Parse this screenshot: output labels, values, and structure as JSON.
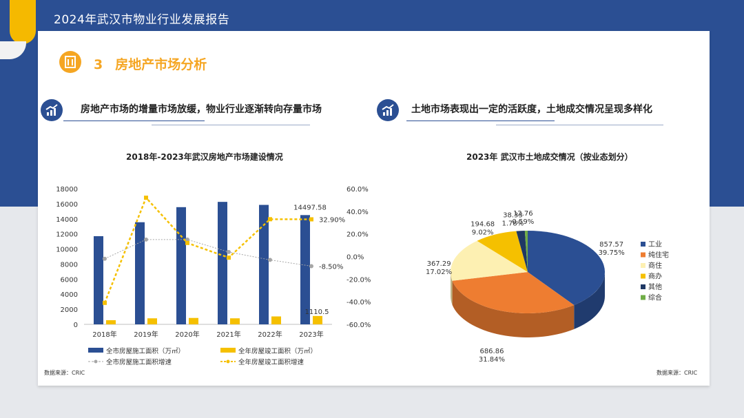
{
  "header": {
    "title": "2024年武汉市物业行业发展报告"
  },
  "section": {
    "number": "3",
    "title": "房地产市场分析"
  },
  "left": {
    "subtitle": "房地产市场的增量市场放缓，物业行业逐渐转向存量市场",
    "source": "数据来源：CRIC"
  },
  "right": {
    "subtitle": "土地市场表现出一定的活跃度，土地成交情况呈现多样化",
    "source": "数据来源：CRIC"
  },
  "chart_data": [
    {
      "type": "bar",
      "title": "2018年-2023年武汉房地产市场建设情况",
      "categories": [
        "2018年",
        "2019年",
        "2020年",
        "2021年",
        "2022年",
        "2023年"
      ],
      "ylim": [
        0,
        18000
      ],
      "y2lim": [
        -60,
        60
      ],
      "y_ticks": [
        "0",
        "2000",
        "4000",
        "6000",
        "8000",
        "10000",
        "12000",
        "14000",
        "16000",
        "18000"
      ],
      "y2_ticks": [
        "-60.0%",
        "-40.0%",
        "-20.0%",
        "0.0%",
        "20.0%",
        "40.0%",
        "60.0%"
      ],
      "series": [
        {
          "name": "全市房屋施工面积（万㎡）",
          "kind": "bar",
          "axis": "left",
          "color": "#2b4f93",
          "values": [
            11700,
            13550,
            15550,
            16250,
            15850,
            14497.58
          ]
        },
        {
          "name": "全年房屋竣工面积（万㎡）",
          "kind": "bar",
          "axis": "left",
          "color": "#f5c000",
          "values": [
            550,
            800,
            850,
            800,
            1050,
            1110.5
          ]
        },
        {
          "name": "全市房屋施工面积增速",
          "kind": "line",
          "axis": "right",
          "color": "#a6a6a6",
          "values": [
            -2,
            15,
            15,
            4,
            -3,
            -8.5
          ]
        },
        {
          "name": "全年房屋竣工面积增速",
          "kind": "line",
          "axis": "right",
          "color": "#f5c000",
          "values": [
            -41,
            52,
            12,
            -1,
            33,
            32.9
          ]
        }
      ],
      "data_labels": {
        "bar_last": "14497.58",
        "bar2_last": "1110.5",
        "line2_last": "32.90%",
        "line1_last": "-8.50%"
      }
    },
    {
      "type": "pie",
      "title": "2023年 武汉市土地成交情况（按业态划分）",
      "slices": [
        {
          "name": "工业",
          "value": 857.57,
          "percent": "39.75%",
          "color": "#2b4f93"
        },
        {
          "name": "纯住宅",
          "value": 686.86,
          "percent": "31.84%",
          "color": "#ee7d31"
        },
        {
          "name": "商住",
          "value": 367.29,
          "percent": "17.02%",
          "color": "#fdf0b2"
        },
        {
          "name": "商办",
          "value": 194.68,
          "percent": "9.02%",
          "color": "#f5c000"
        },
        {
          "name": "其他",
          "value": 38.33,
          "percent": "1.78%",
          "color": "#1f3864"
        },
        {
          "name": "综合",
          "value": 12.76,
          "percent": "0.59%",
          "color": "#70ad47"
        }
      ],
      "value_labels": [
        "857.57",
        "686.86",
        "367.29",
        "194.68",
        "38.33",
        "12.76"
      ]
    }
  ]
}
